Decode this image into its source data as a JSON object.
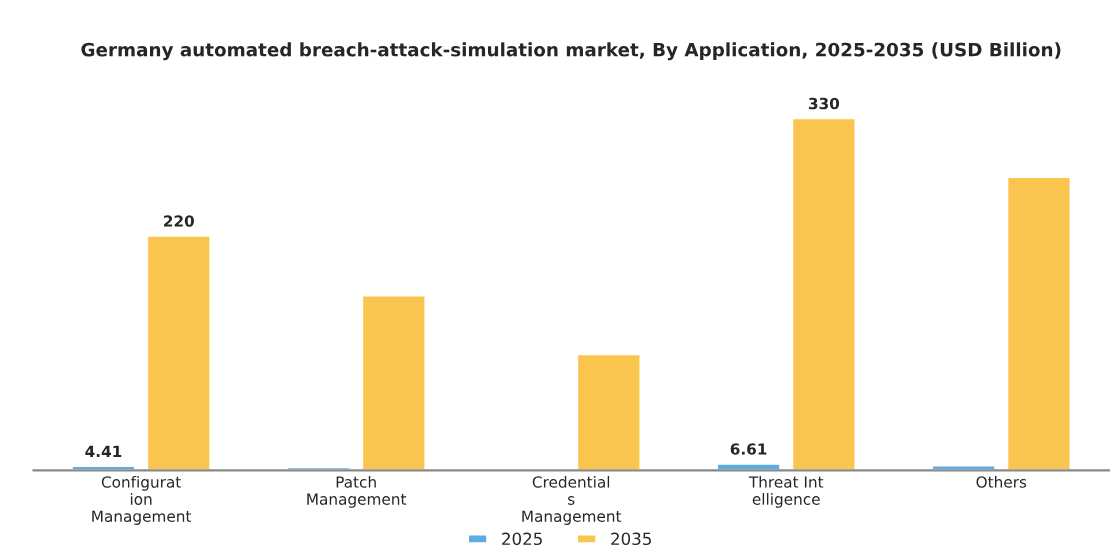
{
  "chart_data": {
    "type": "bar",
    "title": "Germany automated breach-attack-simulation market, By Application, 2025-2035 (USD Billion)",
    "categories": [
      "Configurat\nion\nManagement",
      "Patch\nManagement",
      "Credential\ns\nManagement",
      "Threat Int\nelligence",
      "Others"
    ],
    "series": [
      {
        "name": "2025",
        "color": "#5dade2",
        "values": [
          4.41,
          3.2,
          2.0,
          6.61,
          5.0
        ],
        "value_labels": [
          "4.41",
          null,
          null,
          "6.61",
          null
        ]
      },
      {
        "name": "2035",
        "color": "#f9c54e",
        "values": [
          220,
          164,
          109,
          330,
          275
        ],
        "value_labels": [
          "220",
          null,
          null,
          "330",
          null
        ]
      }
    ],
    "legend": "bottom",
    "grid": false
  }
}
